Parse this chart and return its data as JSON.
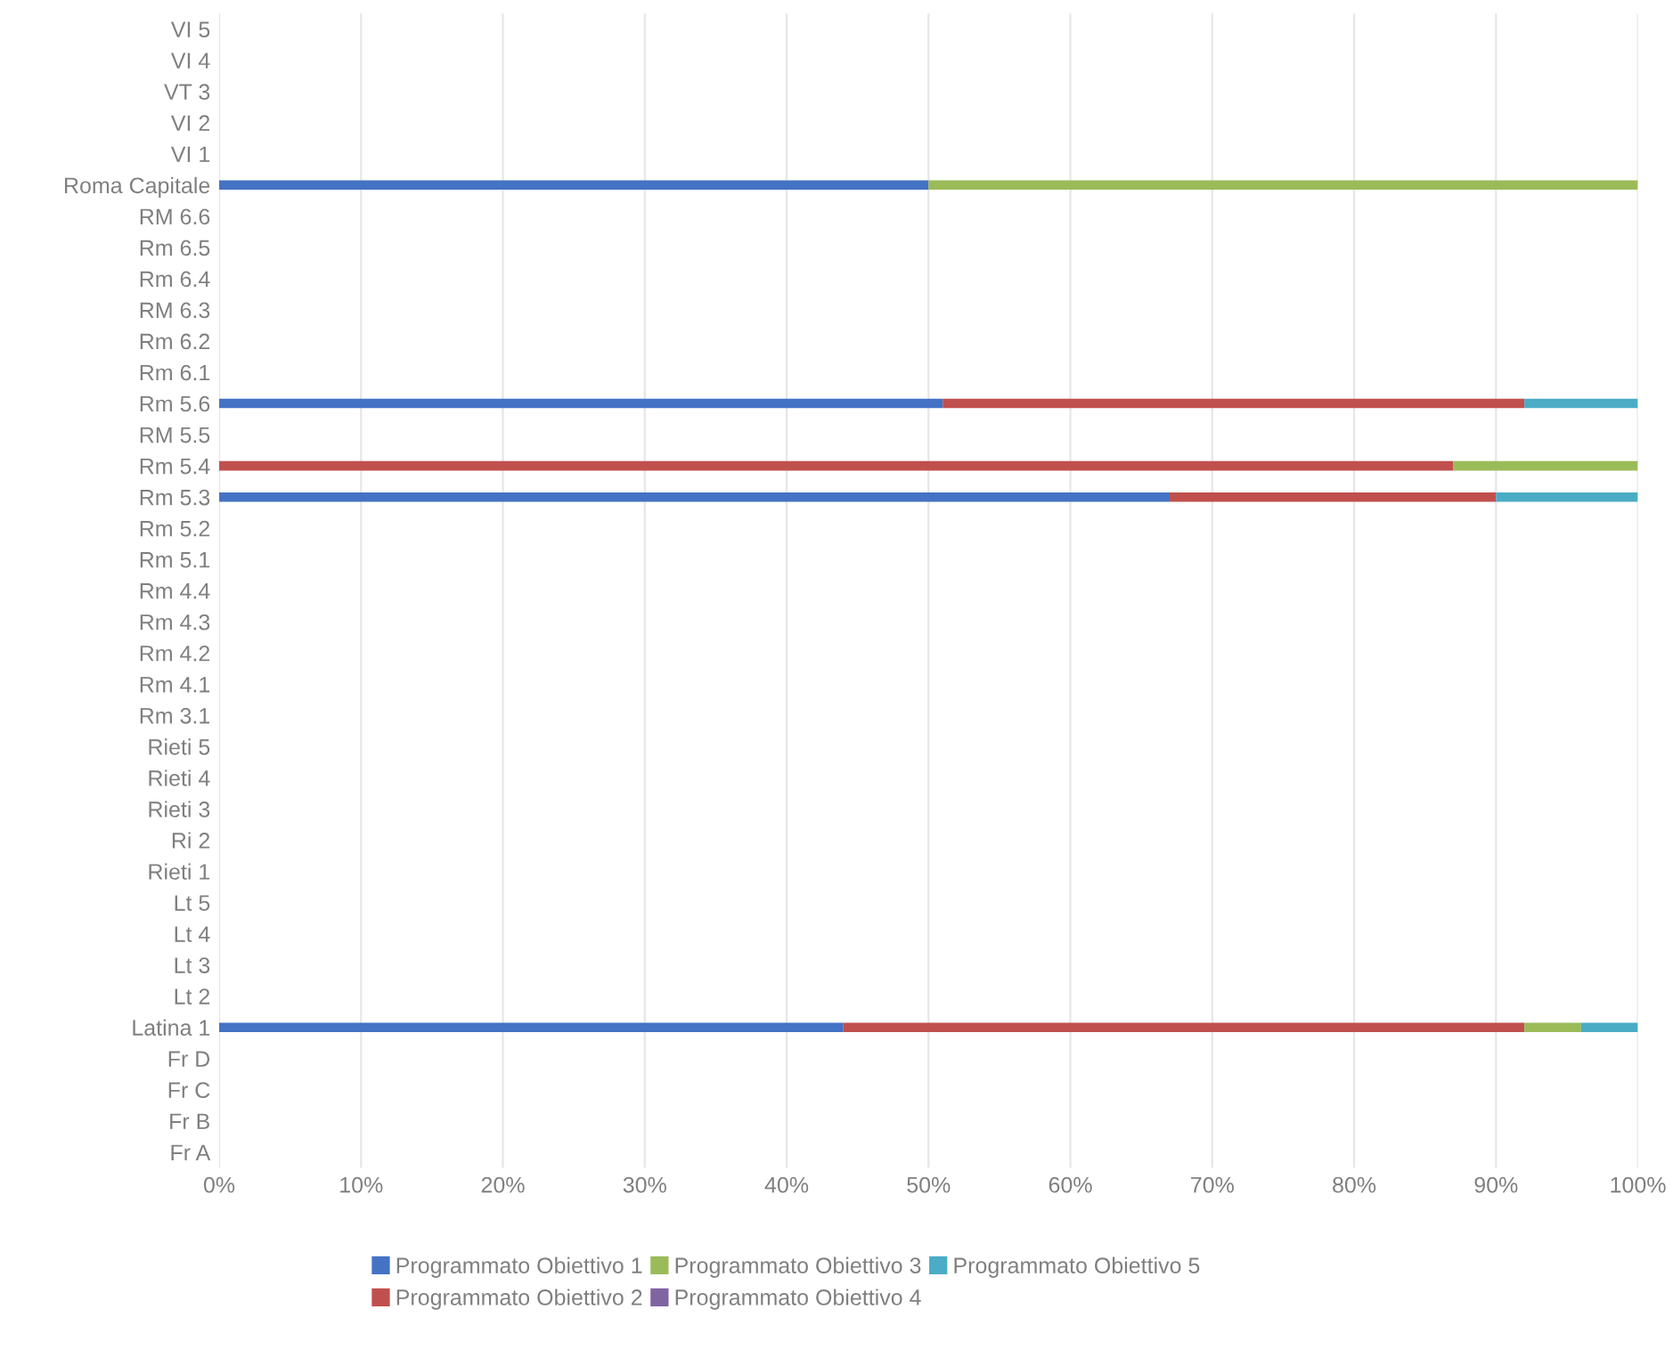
{
  "chart_data": {
    "type": "bar",
    "orientation": "horizontal",
    "stacked": true,
    "categories": [
      "VI 5",
      "VI 4",
      "VT 3",
      "VI 2",
      "VI 1",
      "Roma Capitale",
      "RM 6.6",
      "Rm 6.5",
      "Rm 6.4",
      "RM 6.3",
      "Rm 6.2",
      "Rm 6.1",
      "Rm 5.6",
      "RM 5.5",
      "Rm 5.4",
      "Rm 5.3",
      "Rm 5.2",
      "Rm 5.1",
      "Rm 4.4",
      "Rm 4.3",
      "Rm 4.2",
      "Rm 4.1",
      "Rm 3.1",
      "Rieti 5",
      "Rieti 4",
      "Rieti 3",
      "Ri 2",
      "Rieti 1",
      "Lt 5",
      "Lt 4",
      "Lt 3",
      "Lt 2",
      "Latina 1",
      "Fr D",
      "Fr C",
      "Fr B",
      "Fr A"
    ],
    "series": [
      {
        "name": "Programmato Obiettivo 1",
        "color": "#4472c4",
        "values": [
          null,
          null,
          null,
          null,
          null,
          50,
          null,
          null,
          null,
          null,
          null,
          null,
          51,
          null,
          0,
          67,
          null,
          null,
          null,
          null,
          null,
          null,
          null,
          null,
          null,
          null,
          null,
          null,
          null,
          null,
          null,
          null,
          44,
          null,
          null,
          null,
          null
        ]
      },
      {
        "name": "Programmato Obiettivo 2",
        "color": "#c0504d",
        "values": [
          null,
          null,
          null,
          null,
          null,
          0,
          null,
          null,
          null,
          null,
          null,
          null,
          41,
          null,
          87,
          23,
          null,
          null,
          null,
          null,
          null,
          null,
          null,
          null,
          null,
          null,
          null,
          null,
          null,
          null,
          null,
          null,
          48,
          null,
          null,
          null,
          null
        ]
      },
      {
        "name": "Programmato Obiettivo 3",
        "color": "#9bbb59",
        "values": [
          null,
          null,
          null,
          null,
          null,
          50,
          null,
          null,
          null,
          null,
          null,
          null,
          0,
          null,
          13,
          0,
          null,
          null,
          null,
          null,
          null,
          null,
          null,
          null,
          null,
          null,
          null,
          null,
          null,
          null,
          null,
          null,
          4,
          null,
          null,
          null,
          null
        ]
      },
      {
        "name": "Programmato Obiettivo 4",
        "color": "#8064a2",
        "values": [
          null,
          null,
          null,
          null,
          null,
          0,
          null,
          null,
          null,
          null,
          null,
          null,
          0,
          null,
          0,
          0,
          null,
          null,
          null,
          null,
          null,
          null,
          null,
          null,
          null,
          null,
          null,
          null,
          null,
          null,
          null,
          null,
          0,
          null,
          null,
          null,
          null
        ]
      },
      {
        "name": "Programmato Obiettivo 5",
        "color": "#4bacc6",
        "values": [
          null,
          null,
          null,
          null,
          null,
          0,
          null,
          null,
          null,
          null,
          null,
          null,
          8,
          null,
          0,
          10,
          null,
          null,
          null,
          null,
          null,
          null,
          null,
          null,
          null,
          null,
          null,
          null,
          null,
          null,
          null,
          null,
          4,
          null,
          null,
          null,
          null
        ]
      }
    ],
    "xlim": [
      0,
      100
    ],
    "xticks": [
      {
        "value": 0,
        "label": "0%"
      },
      {
        "value": 10,
        "label": "10%"
      },
      {
        "value": 20,
        "label": "20%"
      },
      {
        "value": 30,
        "label": "30%"
      },
      {
        "value": 40,
        "label": "40%"
      },
      {
        "value": 50,
        "label": "50%"
      },
      {
        "value": 60,
        "label": "60%"
      },
      {
        "value": 70,
        "label": "70%"
      },
      {
        "value": 80,
        "label": "80%"
      },
      {
        "value": 90,
        "label": "90%"
      },
      {
        "value": 100,
        "label": "100%"
      }
    ],
    "grid": "x",
    "legend": "bottom"
  }
}
